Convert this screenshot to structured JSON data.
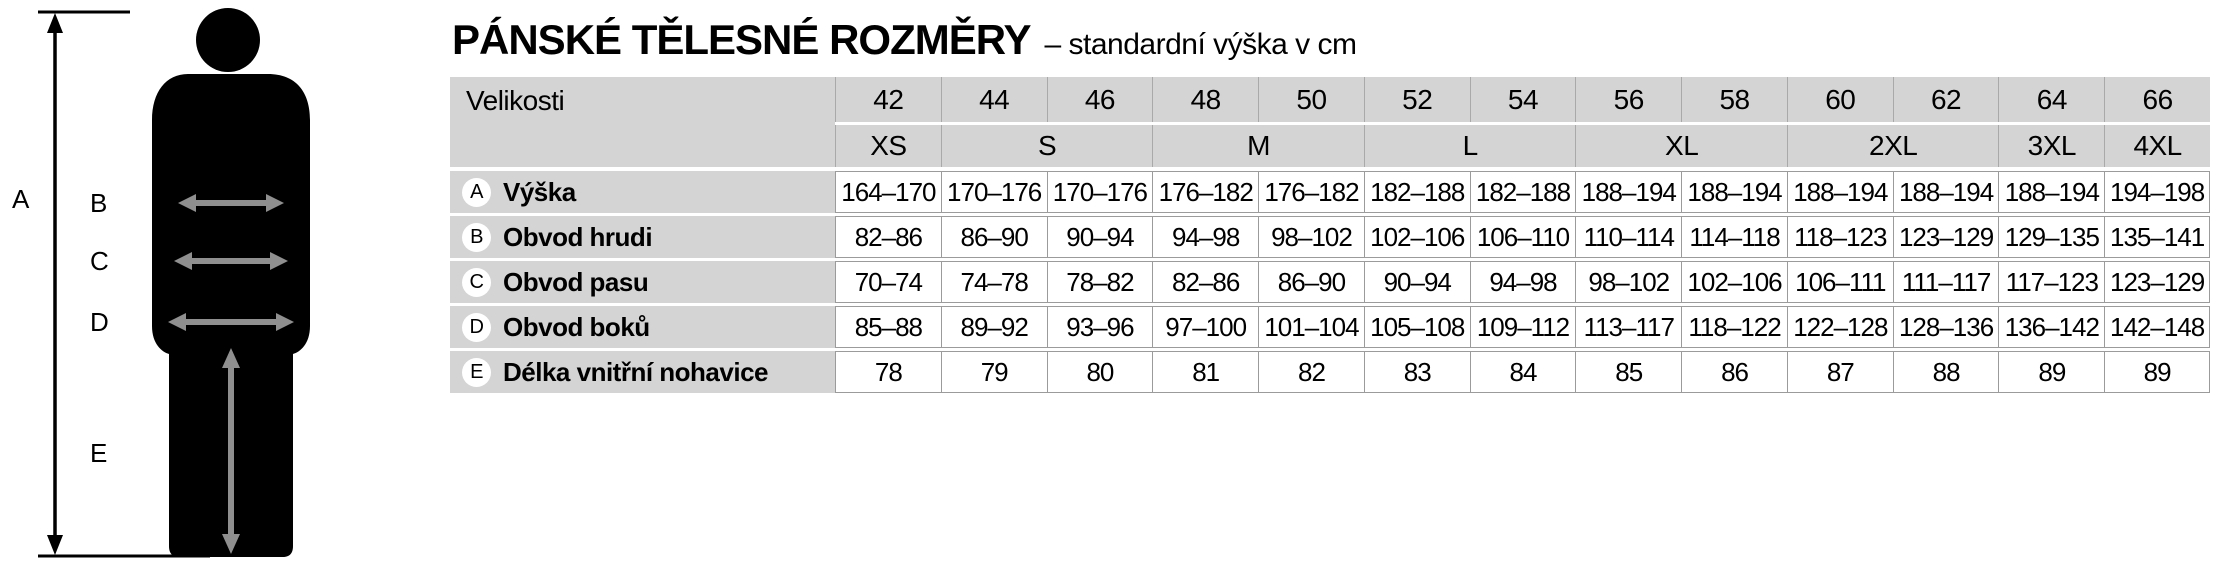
{
  "title": {
    "main": "PÁNSKÉ TĚLESNÉ ROZMĚRY",
    "subtitle": "– standardní výška v cm"
  },
  "figure": {
    "labels": {
      "a": "A",
      "b": "B",
      "c": "C",
      "d": "D",
      "e": "E"
    }
  },
  "table": {
    "corner_label": "Velikosti",
    "sizes": [
      "42",
      "44",
      "46",
      "48",
      "50",
      "52",
      "54",
      "56",
      "58",
      "60",
      "62",
      "64",
      "66"
    ],
    "size_groups": [
      {
        "label": "XS",
        "span": 1
      },
      {
        "label": "S",
        "span": 2
      },
      {
        "label": "M",
        "span": 2
      },
      {
        "label": "L",
        "span": 2
      },
      {
        "label": "XL",
        "span": 2
      },
      {
        "label": "2XL",
        "span": 2
      },
      {
        "label": "3XL",
        "span": 1
      },
      {
        "label": "4XL",
        "span": 1
      }
    ],
    "rows": [
      {
        "letter": "A",
        "label": "Výška",
        "values": [
          "164–170",
          "170–176",
          "170–176",
          "176–182",
          "176–182",
          "182–188",
          "182–188",
          "188–194",
          "188–194",
          "188–194",
          "188–194",
          "188–194",
          "194–198"
        ]
      },
      {
        "letter": "B",
        "label": "Obvod hrudi",
        "values": [
          "82–86",
          "86–90",
          "90–94",
          "94–98",
          "98–102",
          "102–106",
          "106–110",
          "110–114",
          "114–118",
          "118–123",
          "123–129",
          "129–135",
          "135–141"
        ]
      },
      {
        "letter": "C",
        "label": "Obvod pasu",
        "values": [
          "70–74",
          "74–78",
          "78–82",
          "82–86",
          "86–90",
          "90–94",
          "94–98",
          "98–102",
          "102–106",
          "106–111",
          "111–117",
          "117–123",
          "123–129"
        ]
      },
      {
        "letter": "D",
        "label": "Obvod boků",
        "values": [
          "85–88",
          "89–92",
          "93–96",
          "97–100",
          "101–104",
          "105–108",
          "109–112",
          "113–117",
          "118–122",
          "122–128",
          "128–136",
          "136–142",
          "142–148"
        ]
      },
      {
        "letter": "E",
        "label": "Délka vnitřní nohavice",
        "values": [
          "78",
          "79",
          "80",
          "81",
          "82",
          "83",
          "84",
          "85",
          "86",
          "87",
          "88",
          "89",
          "89"
        ]
      }
    ]
  },
  "colors": {
    "header_bg": "#d4d4d4",
    "row_label_bg": "#d4d4d4",
    "cell_border": "#9b9b9b",
    "arrow_gray": "#8f8f8f",
    "silhouette": "#000000"
  }
}
